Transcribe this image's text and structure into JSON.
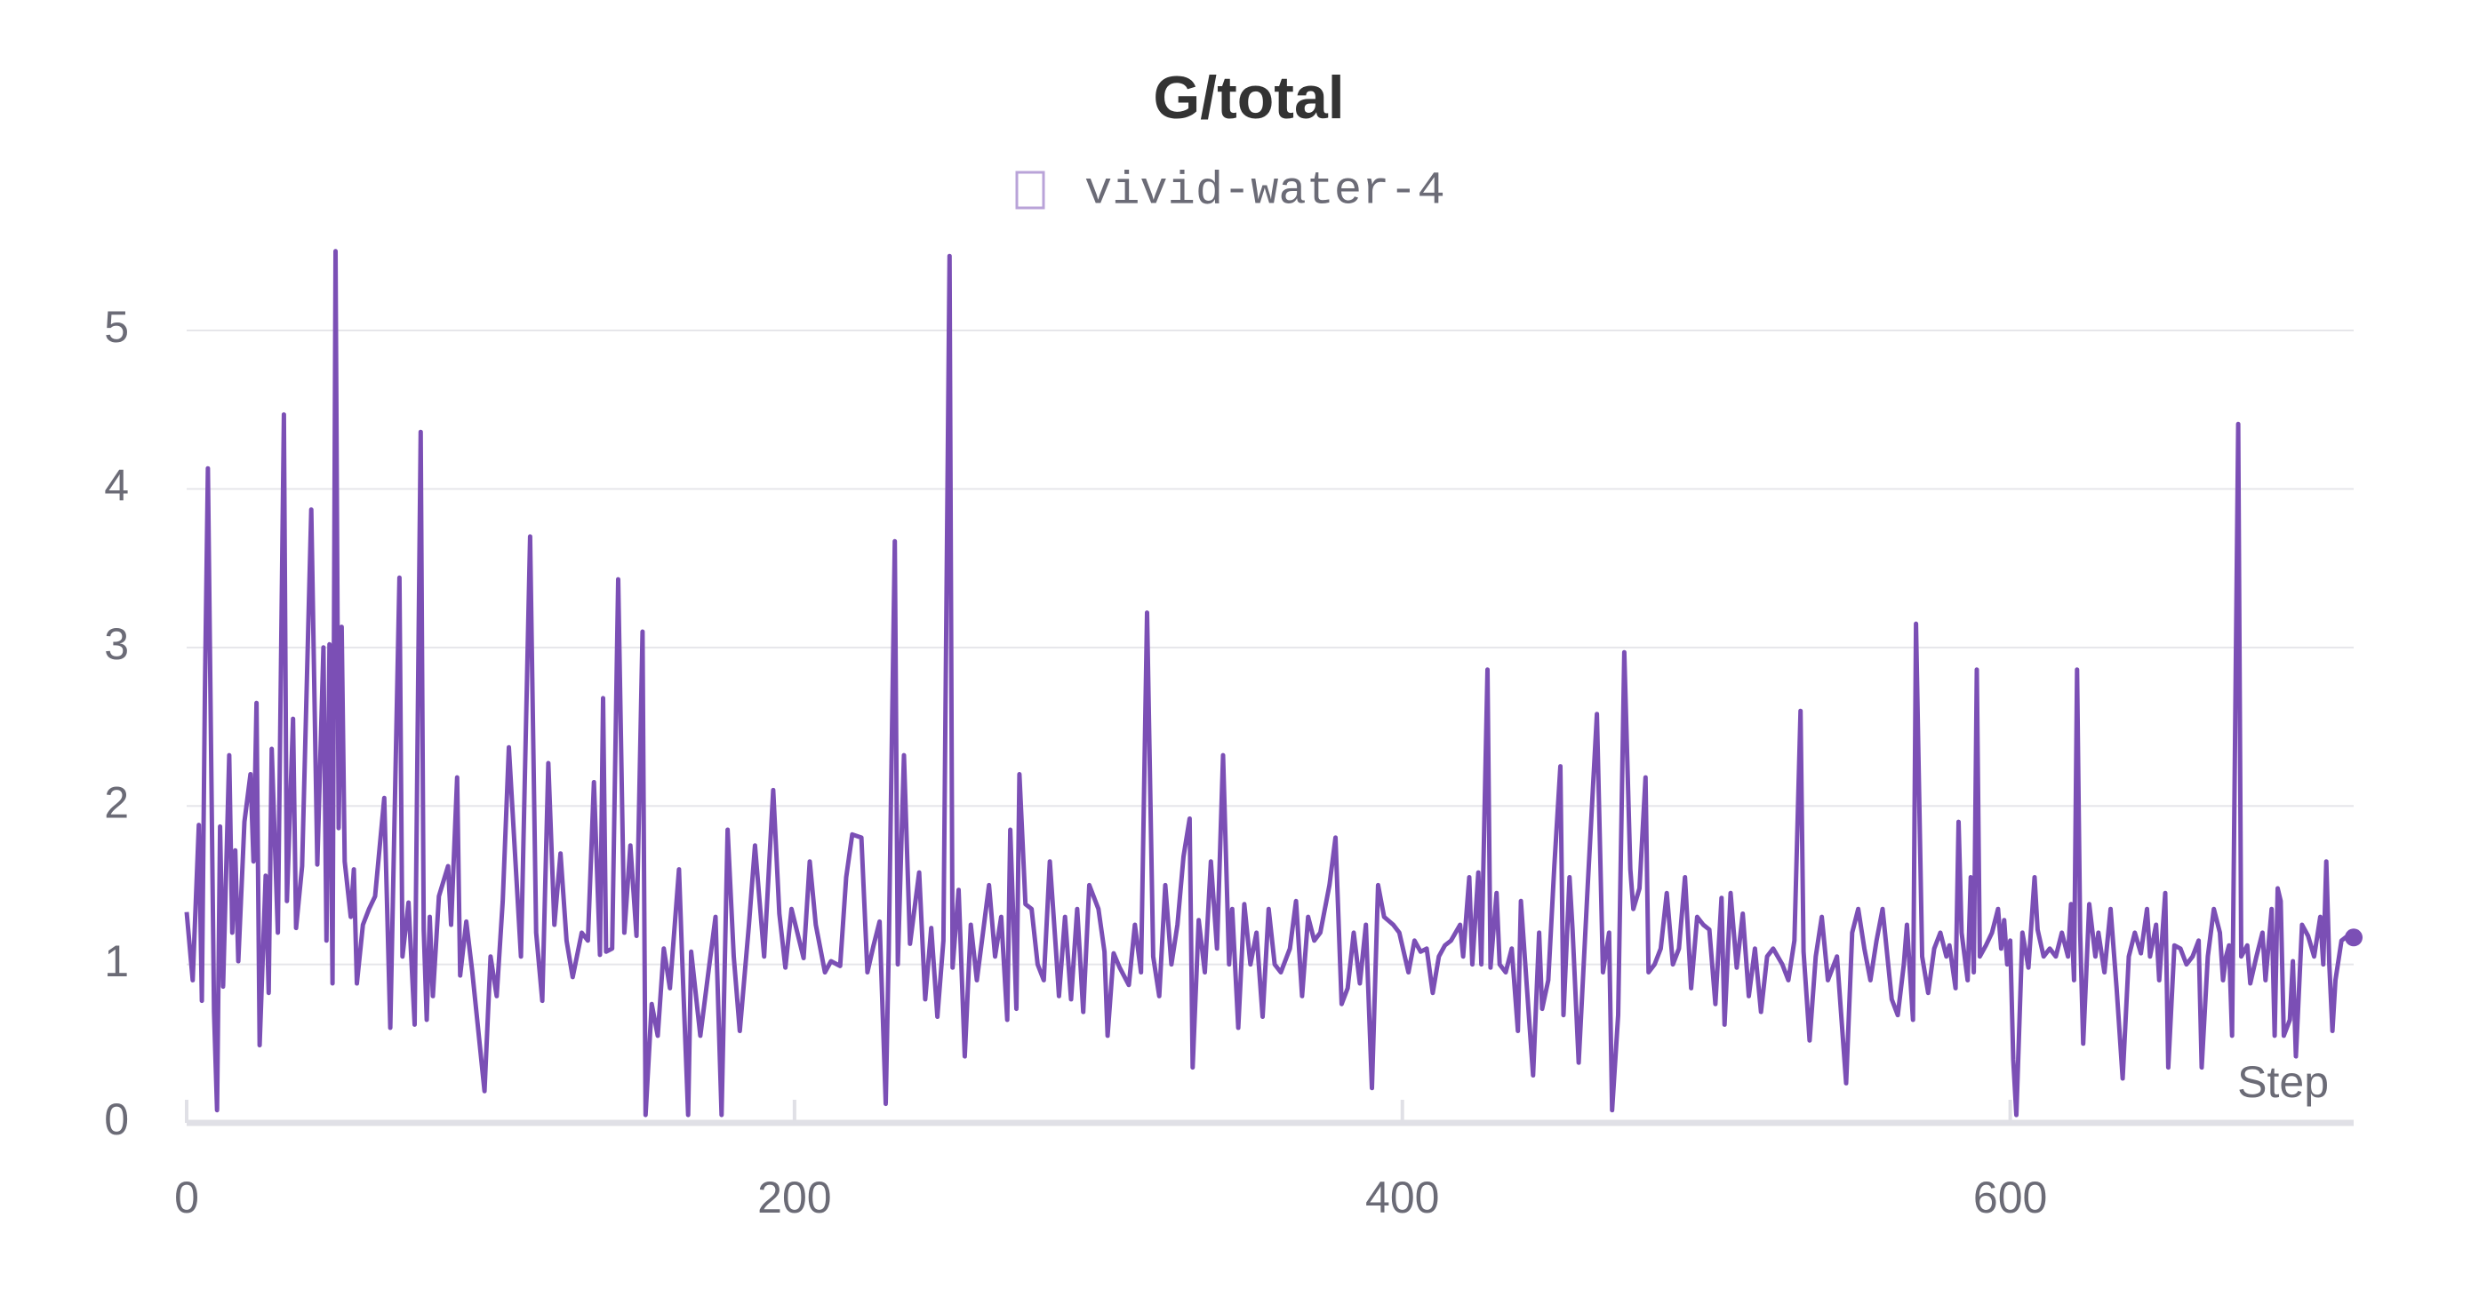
{
  "chart_data": {
    "type": "line",
    "title": "G/total",
    "xlabel": "Step",
    "x": [
      0,
      2,
      4,
      5,
      6,
      7,
      9,
      10,
      11,
      12,
      14,
      15,
      16,
      17,
      19,
      21,
      22,
      23,
      24,
      26,
      27,
      28,
      30,
      32,
      33,
      35,
      36,
      38,
      41,
      43,
      45,
      46,
      47,
      48,
      49,
      50,
      51,
      52,
      54,
      55,
      56,
      58,
      60,
      62,
      65,
      67,
      70,
      71,
      73,
      75,
      77,
      78,
      79,
      80,
      81,
      83,
      86,
      87,
      89,
      90,
      92,
      94,
      98,
      100,
      102,
      104,
      106,
      110,
      113,
      115,
      117,
      119,
      121,
      123,
      125,
      127,
      130,
      132,
      134,
      136,
      137,
      138,
      140,
      142,
      144,
      146,
      148,
      150,
      151,
      153,
      155,
      157,
      159,
      162,
      163,
      165,
      166,
      169,
      172,
      174,
      176,
      178,
      180,
      182,
      185,
      187,
      190,
      193,
      195,
      197,
      199,
      203,
      205,
      207,
      210,
      212,
      215,
      217,
      219,
      222,
      224,
      226,
      228,
      230,
      231,
      233,
      234,
      236,
      238,
      241,
      243,
      245,
      247,
      249,
      251,
      252,
      254,
      256,
      258,
      260,
      262,
      264,
      266,
      268,
      270,
      271,
      273,
      274,
      276,
      278,
      280,
      282,
      284,
      286,
      287,
      289,
      291,
      293,
      295,
      297,
      300,
      302,
      303,
      305,
      307,
      310,
      312,
      314,
      316,
      318,
      320,
      322,
      324,
      326,
      328,
      330,
      331,
      333,
      335,
      337,
      339,
      341,
      343,
      344,
      346,
      348,
      350,
      352,
      354,
      356,
      358,
      360,
      363,
      365,
      367,
      369,
      371,
      373,
      376,
      378,
      380,
      382,
      384,
      386,
      388,
      390,
      392,
      394,
      397,
      399,
      402,
      404,
      406,
      408,
      410,
      412,
      414,
      416,
      419,
      420,
      422,
      423,
      425,
      426,
      428,
      429,
      431,
      432,
      434,
      436,
      438,
      439,
      441,
      443,
      445,
      446,
      448,
      450,
      452,
      453,
      455,
      456,
      458,
      461,
      464,
      466,
      468,
      469,
      471,
      473,
      475,
      476,
      478,
      480,
      481,
      483,
      485,
      487,
      489,
      491,
      493,
      495,
      497,
      499,
      501,
      503,
      505,
      506,
      508,
      510,
      512,
      514,
      516,
      518,
      520,
      522,
      525,
      527,
      529,
      531,
      532,
      534,
      536,
      538,
      540,
      543,
      546,
      548,
      550,
      552,
      554,
      556,
      558,
      561,
      563,
      565,
      566,
      568,
      569,
      571,
      573,
      575,
      577,
      579,
      580,
      582,
      583,
      584,
      586,
      587,
      588,
      589,
      590,
      592,
      594,
      596,
      597,
      598,
      599,
      600,
      601,
      602,
      604,
      606,
      608,
      609,
      611,
      613,
      615,
      617,
      619,
      620,
      621,
      622,
      623,
      624,
      626,
      628,
      629,
      631,
      633,
      635,
      637,
      639,
      641,
      643,
      645,
      646,
      648,
      649,
      651,
      652,
      654,
      656,
      658,
      660,
      662,
      663,
      665,
      667,
      669,
      670,
      671,
      672,
      673,
      675,
      676,
      678,
      679,
      681,
      683,
      684,
      686,
      687,
      688,
      689,
      690,
      692,
      693,
      694,
      696,
      698,
      700,
      702,
      703,
      704,
      705,
      706,
      707,
      709,
      711,
      713
    ],
    "series": [
      {
        "name": "vivid-water-4",
        "color": "#7b4fb5",
        "values": [
          1.33,
          0.9,
          1.88,
          0.77,
          2.7,
          4.13,
          0.7,
          0.08,
          1.87,
          0.86,
          2.32,
          1.2,
          1.72,
          1.02,
          1.9,
          2.2,
          1.65,
          2.65,
          0.49,
          1.56,
          0.82,
          2.36,
          1.2,
          4.47,
          1.4,
          2.55,
          1.23,
          1.62,
          3.87,
          1.63,
          3.0,
          1.15,
          3.02,
          0.88,
          5.5,
          1.86,
          3.13,
          1.65,
          1.3,
          1.6,
          0.88,
          1.25,
          1.35,
          1.43,
          2.05,
          0.6,
          3.44,
          1.05,
          1.39,
          0.62,
          4.36,
          1.22,
          0.65,
          1.3,
          0.8,
          1.43,
          1.62,
          1.25,
          2.18,
          0.93,
          1.27,
          0.95,
          0.2,
          1.05,
          0.8,
          1.4,
          2.37,
          1.05,
          3.7,
          1.2,
          0.77,
          2.27,
          1.25,
          1.7,
          1.15,
          0.92,
          1.2,
          1.15,
          2.15,
          1.06,
          2.68,
          1.08,
          1.1,
          3.43,
          1.2,
          1.75,
          1.18,
          3.1,
          0.05,
          0.75,
          0.55,
          1.1,
          0.85,
          1.6,
          1.05,
          0.05,
          1.08,
          0.55,
          1.0,
          1.3,
          0.05,
          1.85,
          1.05,
          0.58,
          1.25,
          1.75,
          1.05,
          2.1,
          1.32,
          0.98,
          1.35,
          1.04,
          1.65,
          1.25,
          0.95,
          1.02,
          0.99,
          1.55,
          1.82,
          1.8,
          0.95,
          1.12,
          1.27,
          0.12,
          1.1,
          3.67,
          1.0,
          2.32,
          1.13,
          1.58,
          0.78,
          1.23,
          0.67,
          1.15,
          5.47,
          0.98,
          1.47,
          0.42,
          1.25,
          0.9,
          1.2,
          1.5,
          1.05,
          1.3,
          0.65,
          1.85,
          0.72,
          2.2,
          1.38,
          1.35,
          1.0,
          0.9,
          1.65,
          1.1,
          0.8,
          1.3,
          0.78,
          1.35,
          0.7,
          1.5,
          1.35,
          1.08,
          0.55,
          1.07,
          0.98,
          0.87,
          1.25,
          0.95,
          3.22,
          1.05,
          0.8,
          1.5,
          1.0,
          1.25,
          1.68,
          1.92,
          0.35,
          1.28,
          0.95,
          1.65,
          1.1,
          2.32,
          1.0,
          1.35,
          0.6,
          1.38,
          1.0,
          1.2,
          0.67,
          1.35,
          1.0,
          0.95,
          1.1,
          1.4,
          0.8,
          1.3,
          1.15,
          1.2,
          1.5,
          1.8,
          0.75,
          0.85,
          1.2,
          0.88,
          1.25,
          0.22,
          1.5,
          1.3,
          1.25,
          1.2,
          0.95,
          1.15,
          1.08,
          1.1,
          0.82,
          1.05,
          1.12,
          1.15,
          1.25,
          1.05,
          1.55,
          1.0,
          1.58,
          1.0,
          2.86,
          0.98,
          1.45,
          1.0,
          0.95,
          1.1,
          0.58,
          1.4,
          0.85,
          0.3,
          1.2,
          0.72,
          0.9,
          1.62,
          2.25,
          0.68,
          1.55,
          1.22,
          0.38,
          1.5,
          2.58,
          0.95,
          1.2,
          0.08,
          0.68,
          2.97,
          1.6,
          1.35,
          1.48,
          2.18,
          0.95,
          1.0,
          1.1,
          1.45,
          1.0,
          1.1,
          1.55,
          0.85,
          1.3,
          1.25,
          1.22,
          0.75,
          1.42,
          0.62,
          1.45,
          0.98,
          1.32,
          0.8,
          1.1,
          0.7,
          1.05,
          1.1,
          1.0,
          0.9,
          1.15,
          2.6,
          1.08,
          0.52,
          1.05,
          1.3,
          0.9,
          1.05,
          0.25,
          1.2,
          1.35,
          1.1,
          0.9,
          1.15,
          1.35,
          0.78,
          0.68,
          1.0,
          1.25,
          0.65,
          3.15,
          1.05,
          0.82,
          1.1,
          1.2,
          1.05,
          1.12,
          0.85,
          1.9,
          1.2,
          0.9,
          1.55,
          0.95,
          2.86,
          1.05,
          1.12,
          1.2,
          1.35,
          1.1,
          1.28,
          1.0,
          1.15,
          0.4,
          0.05,
          1.2,
          0.98,
          1.55,
          1.22,
          1.05,
          1.1,
          1.05,
          1.2,
          1.05,
          1.38,
          0.9,
          2.86,
          1.2,
          0.5,
          1.38,
          1.05,
          1.2,
          0.95,
          1.35,
          0.85,
          0.28,
          1.05,
          1.2,
          1.07,
          1.35,
          1.05,
          1.25,
          0.9,
          1.45,
          0.35,
          1.12,
          1.1,
          1.0,
          1.05,
          1.15,
          0.35,
          1.05,
          1.35,
          1.2,
          0.9,
          1.05,
          1.12,
          0.55,
          4.41,
          1.05,
          1.12,
          0.88,
          1.05,
          1.2,
          0.9,
          1.35,
          0.55,
          1.48,
          1.4,
          0.55,
          0.65,
          1.02,
          0.42,
          1.25,
          1.18,
          1.05,
          1.3,
          1.0,
          1.65,
          1.0,
          0.58,
          0.9,
          1.15,
          1.18,
          1.17
        ]
      }
    ],
    "xlim": [
      0,
      713
    ],
    "ylim": [
      0,
      5.6
    ],
    "xticks": [
      0,
      200,
      400,
      600
    ],
    "yticks": [
      0,
      1,
      2,
      3,
      4,
      5
    ],
    "grid": true
  }
}
